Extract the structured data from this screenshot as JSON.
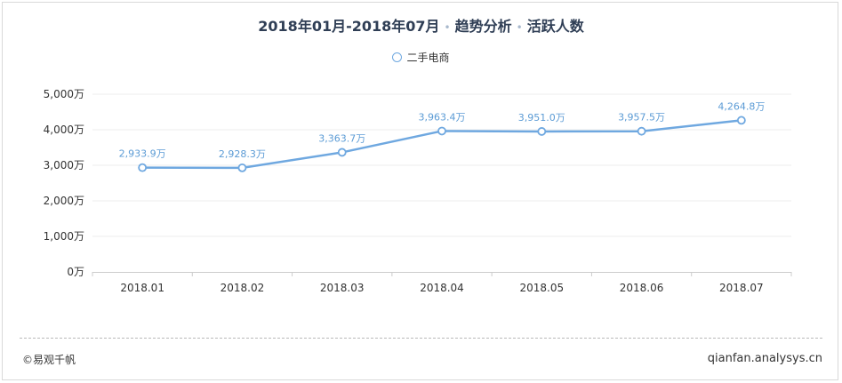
{
  "header": {
    "period": "2018年01月-2018年07月",
    "separator": "•",
    "metric1": "趋势分析",
    "metric2": "活跃人数"
  },
  "legend": {
    "label": "二手电商"
  },
  "footer": {
    "copyright": "©易观千帆",
    "site": "qianfan.analysys.cn"
  },
  "colors": {
    "line": "#6fa8e0",
    "label": "#5b9bd5",
    "grid": "#eeeeee"
  },
  "chart_data": {
    "type": "line",
    "categories": [
      "2018.01",
      "2018.02",
      "2018.03",
      "2018.04",
      "2018.05",
      "2018.06",
      "2018.07"
    ],
    "series": [
      {
        "name": "二手电商",
        "values": [
          2933.9,
          2928.3,
          3363.7,
          3963.4,
          3951.0,
          3957.5,
          4264.8
        ],
        "labels": [
          "2,933.9万",
          "2,928.3万",
          "3,363.7万",
          "3,963.4万",
          "3,951.0万",
          "3,957.5万",
          "4,264.8万"
        ]
      }
    ],
    "yticks": [
      "0万",
      "1,000万",
      "2,000万",
      "3,000万",
      "4,000万",
      "5,000万"
    ],
    "ylim": [
      0,
      5000
    ],
    "grid": true,
    "legend_position": "top-center"
  }
}
